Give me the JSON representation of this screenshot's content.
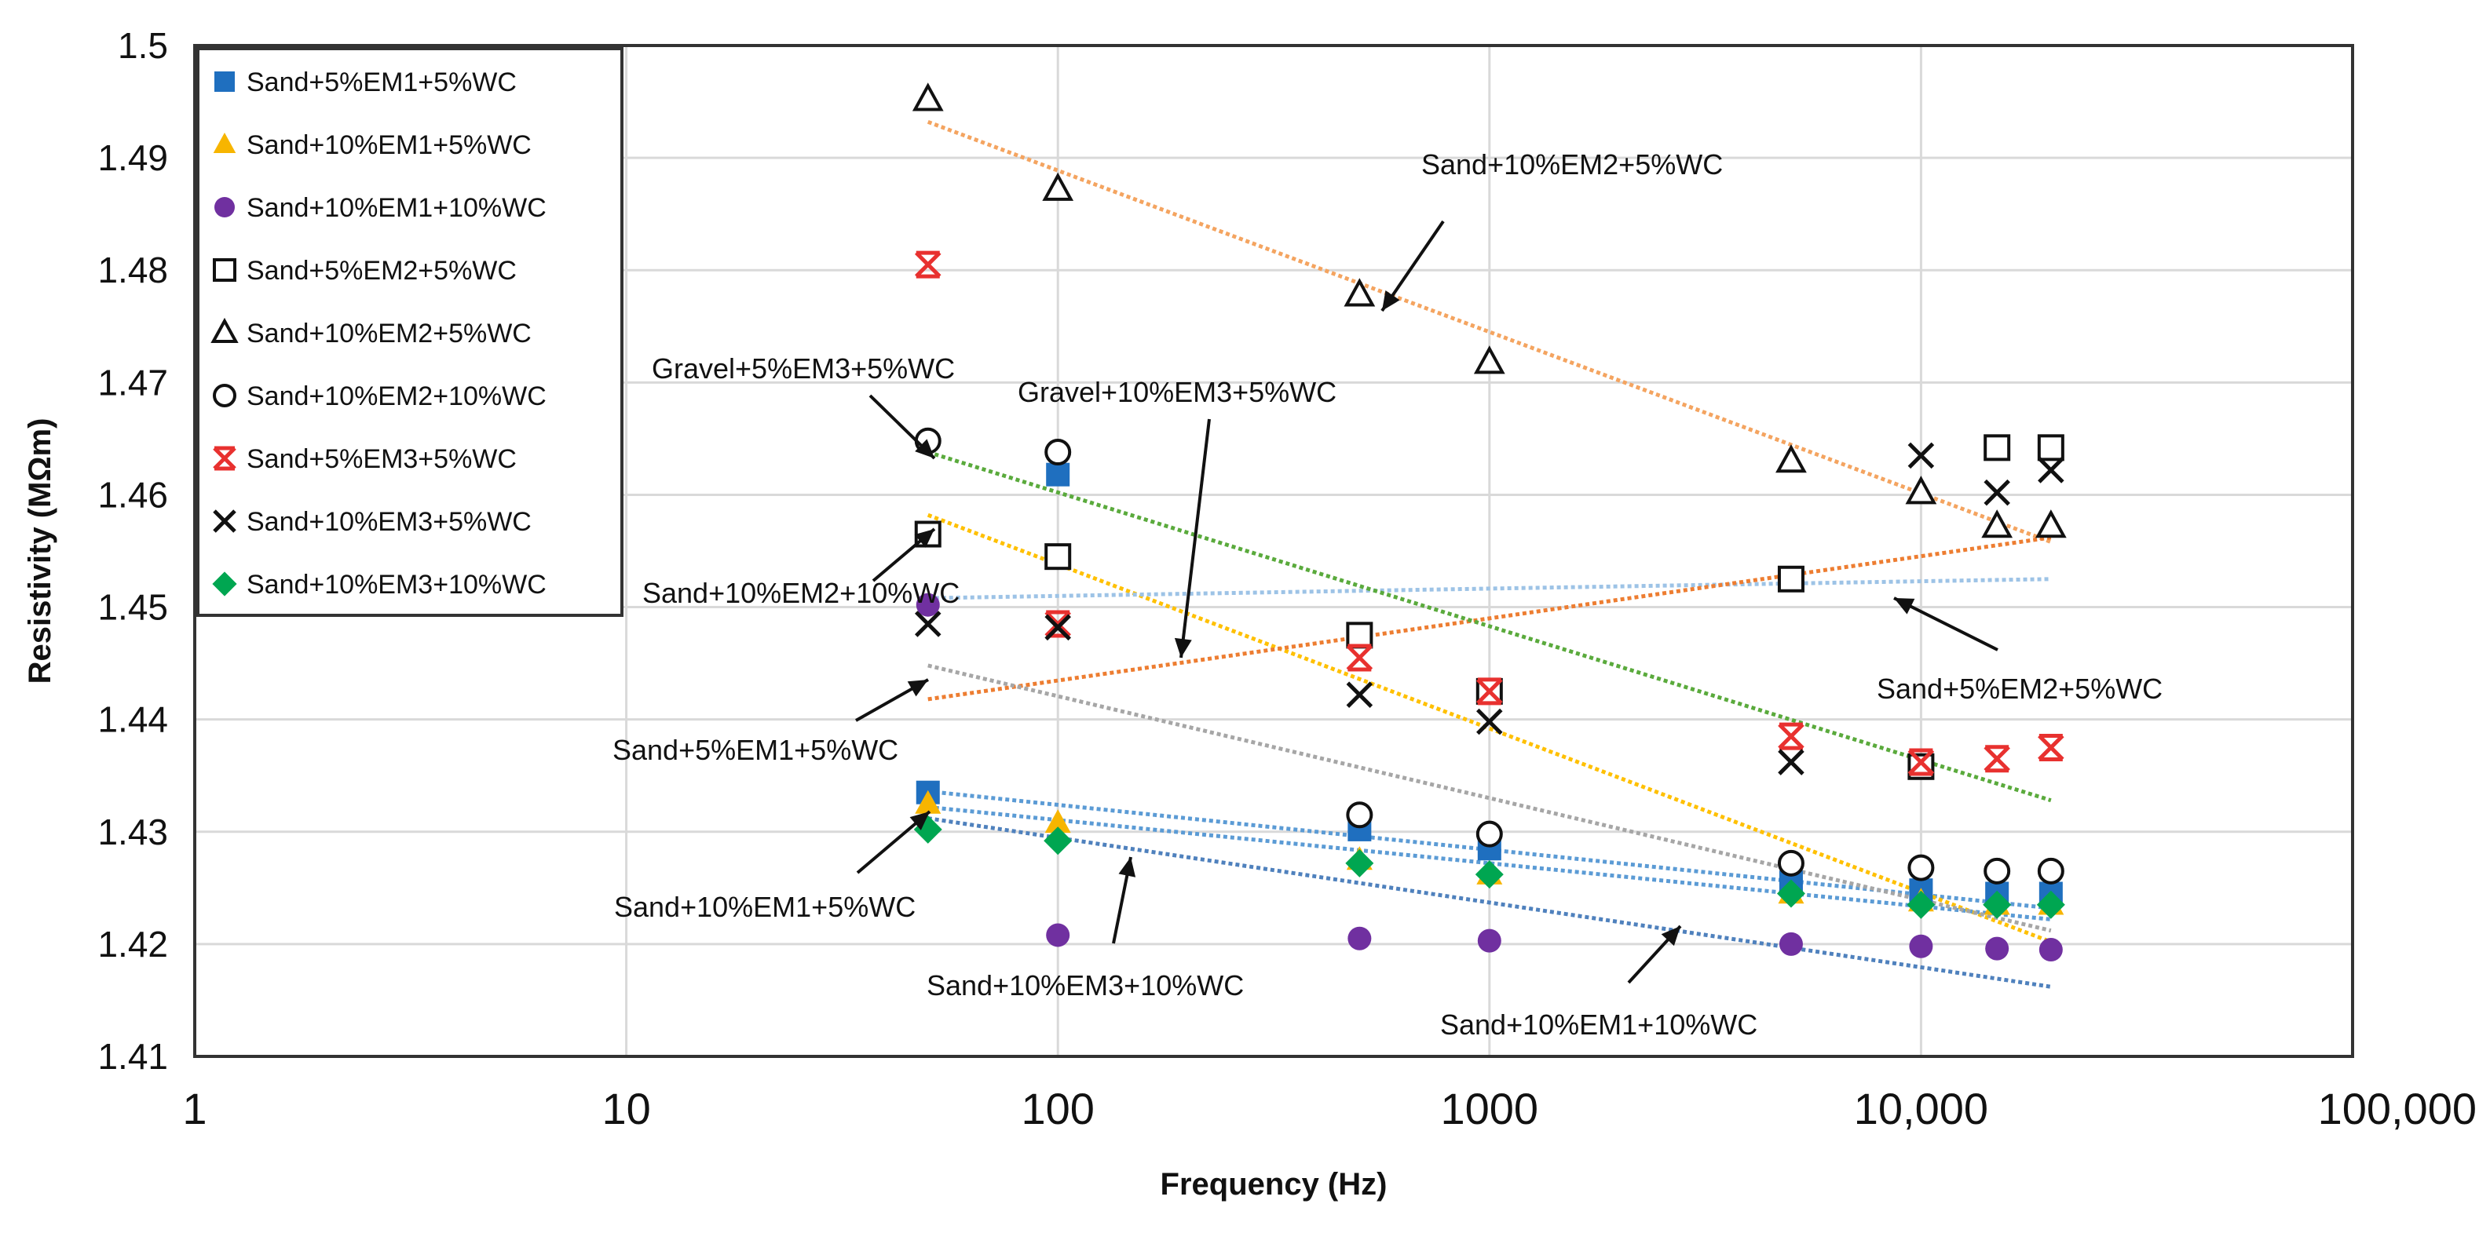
{
  "chart_data": {
    "type": "scatter",
    "title": "",
    "xlabel": "Frequency (Hz)",
    "ylabel": "Resistivity (MΩm)",
    "xscale": "log",
    "xlim": [
      1,
      100000
    ],
    "ylim": [
      1.41,
      1.5
    ],
    "grid": true,
    "legend_position": "top-left",
    "x_tick_labels": [
      "1",
      "10",
      "100",
      "1000",
      "10,000",
      "100,000"
    ],
    "y_tick_labels": [
      "1.41",
      "1.42",
      "1.43",
      "1.44",
      "1.45",
      "1.46",
      "1.47",
      "1.48",
      "1.49",
      "1.5"
    ],
    "series": [
      {
        "name": "Sand+5%EM1+5%WC",
        "marker": "square-filled",
        "color": "#1f6fbf",
        "x": [
          50,
          100,
          500,
          1000,
          5000,
          10000,
          15000,
          20000
        ],
        "y": [
          1.4335,
          1.4618,
          1.4302,
          1.4285,
          1.4255,
          1.4248,
          1.4245,
          1.4245
        ],
        "trend": {
          "color": "#5b9bd5",
          "y_start": 1.4336,
          "y_end": 1.4232
        }
      },
      {
        "name": "Sand+10%EM1+5%WC",
        "marker": "triangle-filled",
        "color": "#f7b500",
        "x": [
          50,
          100,
          500,
          1000,
          5000,
          10000,
          15000,
          20000
        ],
        "y": [
          1.4325,
          1.4308,
          1.4275,
          1.4262,
          1.4245,
          1.4238,
          1.4235,
          1.4235
        ],
        "trend": {
          "color": "#ffc000",
          "y_start": 1.4582,
          "y_end": 1.4202
        }
      },
      {
        "name": "Sand+10%EM1+10%WC",
        "marker": "circle-filled",
        "color": "#7030a0",
        "x": [
          50,
          100,
          500,
          1000,
          5000,
          10000,
          15000,
          20000
        ],
        "y": [
          1.4502,
          1.4208,
          1.4205,
          1.4203,
          1.42,
          1.4198,
          1.4196,
          1.4195
        ],
        "trend": {
          "color": "#4f81bd",
          "y_start": 1.4312,
          "y_end": 1.4162
        }
      },
      {
        "name": "Sand+5%EM2+5%WC",
        "marker": "square-open",
        "color": "#111111",
        "x": [
          50,
          100,
          500,
          1000,
          5000,
          10000,
          15000,
          20000
        ],
        "y": [
          1.4565,
          1.4545,
          1.4475,
          1.4425,
          1.4525,
          1.4358,
          1.4642,
          1.4642
        ],
        "trend": {
          "color": "#9dc3e6",
          "y_start": 1.4508,
          "y_end": 1.4525
        }
      },
      {
        "name": "Sand+10%EM2+5%WC",
        "marker": "triangle-open",
        "color": "#111111",
        "x": [
          50,
          100,
          500,
          1000,
          5000,
          10000,
          15000,
          20000
        ],
        "y": [
          1.4952,
          1.4872,
          1.4778,
          1.4718,
          1.463,
          1.4602,
          1.4572,
          1.4572
        ],
        "trend": {
          "color": "#f4a460",
          "y_start": 1.4932,
          "y_end": 1.4558
        }
      },
      {
        "name": "Sand+10%EM2+10%WC",
        "marker": "circle-open",
        "color": "#111111",
        "x": [
          50,
          100,
          500,
          1000,
          5000,
          10000,
          15000,
          20000
        ],
        "y": [
          1.4648,
          1.4638,
          1.4315,
          1.4298,
          1.4272,
          1.4268,
          1.4265,
          1.4265
        ],
        "trend": {
          "color": "#5b9bd5",
          "y_start": 1.4322,
          "y_end": 1.4222
        }
      },
      {
        "name": "Sand+5%EM3+5%WC",
        "marker": "x-star",
        "color": "#e8312f",
        "x": [
          50,
          100,
          500,
          1000,
          5000,
          10000,
          15000,
          20000
        ],
        "y": [
          1.4805,
          1.4485,
          1.4455,
          1.4425,
          1.4385,
          1.4362,
          1.4365,
          1.4375
        ],
        "trend": {
          "color": "#ed7d31",
          "y_start": 1.4418,
          "y_end": 1.4562
        }
      },
      {
        "name": "Sand+10%EM3+5%WC",
        "marker": "x",
        "color": "#111111",
        "x": [
          50,
          100,
          500,
          1000,
          5000,
          10000,
          15000,
          20000
        ],
        "y": [
          1.4485,
          1.4482,
          1.4422,
          1.4398,
          1.4362,
          1.4635,
          1.4602,
          1.4622
        ],
        "trend": {
          "color": "#a6a6a6",
          "y_start": 1.4448,
          "y_end": 1.4212
        }
      },
      {
        "name": "Sand+10%EM3+10%WC",
        "marker": "diamond-filled",
        "color": "#00a651",
        "x": [
          50,
          100,
          500,
          1000,
          5000,
          10000,
          15000,
          20000
        ],
        "y": [
          1.4302,
          1.4292,
          1.4272,
          1.4262,
          1.4245,
          1.4235,
          1.4235,
          1.4235
        ],
        "trend": {
          "color": "#5aaa3c",
          "y_start": 1.4638,
          "y_end": 1.4328
        }
      }
    ],
    "annotations": [
      "Sand+10%EM2+5%WC",
      "Gravel+5%EM3+5%WC",
      "Gravel+10%EM3+5%WC",
      "Sand+10%EM2+10%WC",
      "Sand+5%EM1+5%WC",
      "Sand+5%EM2+5%WC",
      "Sand+10%EM1+5%WC",
      "Sand+10%EM3+10%WC",
      "Sand+10%EM1+10%WC"
    ]
  }
}
